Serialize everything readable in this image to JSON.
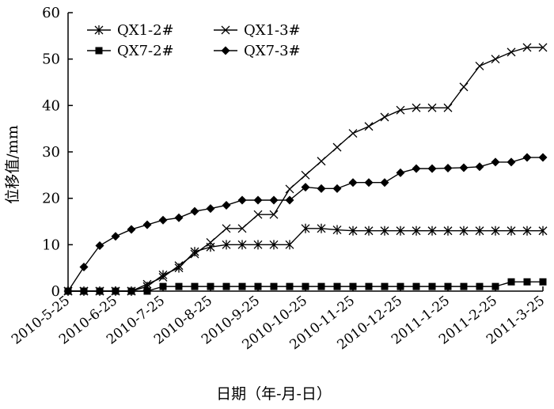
{
  "chart_data": {
    "type": "line",
    "x": [
      "2010-5-25",
      "2010-6-5",
      "2010-6-15",
      "2010-6-25",
      "2010-7-5",
      "2010-7-15",
      "2010-7-25",
      "2010-8-5",
      "2010-8-15",
      "2010-8-25",
      "2010-9-5",
      "2010-9-15",
      "2010-9-25",
      "2010-10-5",
      "2010-10-15",
      "2010-10-25",
      "2010-11-5",
      "2010-11-15",
      "2010-11-25",
      "2010-12-5",
      "2010-12-15",
      "2010-12-25",
      "2011-1-5",
      "2011-1-15",
      "2011-1-25",
      "2011-2-5",
      "2011-2-15",
      "2011-2-25",
      "2011-3-5",
      "2011-3-15",
      "2011-3-25"
    ],
    "x_tick_labels": [
      "2010-5-25",
      "2010-6-25",
      "2010-7-25",
      "2010-8-25",
      "2010-9-25",
      "2010-10-25",
      "2010-11-25",
      "2010-12-25",
      "2011-1-25",
      "2011-2-25",
      "2011-3-25"
    ],
    "xlabel": "日期（年-月-日）",
    "ylabel": "位移值/mm",
    "ylim": [
      0,
      60
    ],
    "y_ticks": [
      0,
      10,
      20,
      30,
      40,
      50,
      60
    ],
    "grid": false,
    "legend_position": "top-left",
    "series": [
      {
        "name": "QX1-2#",
        "marker": "asterisk",
        "values": [
          0,
          0,
          0,
          0,
          0,
          1,
          3.5,
          5,
          8.5,
          9.5,
          10,
          10,
          10,
          10,
          10,
          13.5,
          13.5,
          13.2,
          13,
          13,
          13,
          13,
          13,
          13,
          13,
          13,
          13,
          13,
          13,
          13,
          13
        ]
      },
      {
        "name": "QX1-3#",
        "marker": "x",
        "values": [
          0,
          0,
          0,
          0,
          0,
          1.5,
          3,
          5.5,
          8,
          10.5,
          13.5,
          13.5,
          16.5,
          16.5,
          22,
          25,
          28,
          31,
          34,
          35.5,
          37.5,
          39,
          39.5,
          39.5,
          39.5,
          44,
          48.5,
          50,
          51.5,
          52.5,
          52.5
        ]
      },
      {
        "name": "QX7-2#",
        "marker": "square",
        "values": [
          0,
          0,
          0,
          0,
          0,
          0,
          1,
          1,
          1,
          1,
          1,
          1,
          1,
          1,
          1,
          1,
          1,
          1,
          1,
          1,
          1,
          1,
          1,
          1,
          1,
          1,
          1,
          1,
          2,
          2,
          2
        ]
      },
      {
        "name": "QX7-3#",
        "marker": "diamond",
        "values": [
          0,
          5.2,
          9.8,
          11.8,
          13.3,
          14.3,
          15.3,
          15.8,
          17.2,
          17.8,
          18.5,
          19.6,
          19.6,
          19.6,
          19.6,
          22.4,
          22.1,
          22.1,
          23.4,
          23.4,
          23.4,
          25.5,
          26.4,
          26.4,
          26.5,
          26.6,
          26.8,
          27.8,
          27.8,
          28.8,
          28.8
        ]
      }
    ]
  },
  "colors": {
    "line": "#000000",
    "background": "#ffffff"
  }
}
